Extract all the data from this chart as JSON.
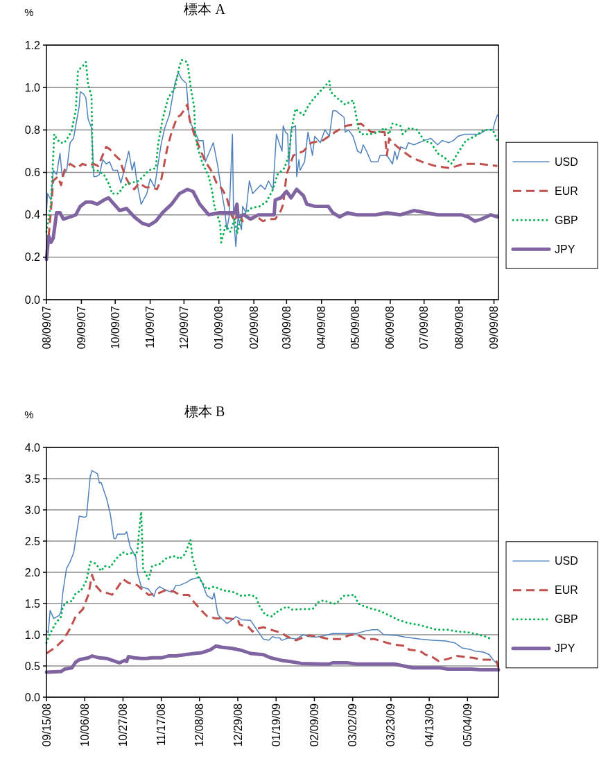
{
  "chart_data": [
    {
      "type": "line",
      "title": "標本 A",
      "ylabel": "%",
      "xlim": [
        "2007-08-09",
        "2008-09-13"
      ],
      "ylim": [
        0,
        1.2
      ],
      "yticks": [
        {
          "value": 0,
          "label": "0.0"
        },
        {
          "value": 0.2,
          "label": "0.2"
        },
        {
          "value": 0.4,
          "label": "0.4"
        },
        {
          "value": 0.6,
          "label": "0.6"
        },
        {
          "value": 0.8,
          "label": "0.8"
        },
        {
          "value": 1.0,
          "label": "1.0"
        },
        {
          "value": 1.2,
          "label": "1.2"
        }
      ],
      "xticks": [
        {
          "value": "2007-08-09",
          "label": "08/09/07"
        },
        {
          "value": "2007-09-09",
          "label": "09/09/07"
        },
        {
          "value": "2007-10-09",
          "label": "10/09/07"
        },
        {
          "value": "2007-11-09",
          "label": "11/09/07"
        },
        {
          "value": "2007-12-09",
          "label": "12/09/07"
        },
        {
          "value": "2008-01-09",
          "label": "01/09/08"
        },
        {
          "value": "2008-02-09",
          "label": "02/09/08"
        },
        {
          "value": "2008-03-09",
          "label": "03/09/08"
        },
        {
          "value": "2008-04-09",
          "label": "04/09/08"
        },
        {
          "value": "2008-05-09",
          "label": "05/09/08"
        },
        {
          "value": "2008-06-09",
          "label": "06/09/08"
        },
        {
          "value": "2008-07-09",
          "label": "07/09/08"
        },
        {
          "value": "2008-08-09",
          "label": "08/09/08"
        },
        {
          "value": "2008-09-09",
          "label": "09/09/08"
        }
      ],
      "grid": "y",
      "legend": "right",
      "series": [
        {
          "name": "USD",
          "color": "#4f81bd",
          "line_style": "solid",
          "x": [
            "2007-08-09",
            "2007-08-10",
            "2007-08-13",
            "2007-08-15",
            "2007-08-18",
            "2007-08-21",
            "2007-08-23",
            "2007-08-27",
            "2007-08-30",
            "2007-09-02",
            "2007-09-04",
            "2007-09-07",
            "2007-09-08",
            "2007-09-11",
            "2007-09-13",
            "2007-09-15",
            "2007-09-18",
            "2007-09-20",
            "2007-09-22",
            "2007-09-25",
            "2007-09-28",
            "2007-10-01",
            "2007-10-04",
            "2007-10-07",
            "2007-10-11",
            "2007-10-14",
            "2007-10-17",
            "2007-10-21",
            "2007-10-24",
            "2007-10-26",
            "2007-10-28",
            "2007-11-01",
            "2007-11-06",
            "2007-11-09",
            "2007-11-13",
            "2007-11-16",
            "2007-11-19",
            "2007-11-22",
            "2007-11-26",
            "2007-12-01",
            "2007-12-04",
            "2007-12-07",
            "2007-12-11",
            "2007-12-14",
            "2007-12-18",
            "2007-12-22",
            "2007-12-26",
            "2007-12-28",
            "2007-12-31",
            "2008-01-04",
            "2008-01-08",
            "2008-01-11",
            "2008-01-14",
            "2008-01-16",
            "2008-01-18",
            "2008-01-21",
            "2008-01-22",
            "2008-01-24",
            "2008-01-26",
            "2008-01-29",
            "2008-01-30",
            "2008-02-02",
            "2008-02-05",
            "2008-02-08",
            "2008-02-15",
            "2008-02-19",
            "2008-02-22",
            "2008-02-26",
            "2008-02-29",
            "2008-03-03",
            "2008-03-05",
            "2008-03-06",
            "2008-03-08",
            "2008-03-10",
            "2008-03-11",
            "2008-03-13",
            "2008-03-14",
            "2008-03-17",
            "2008-03-18",
            "2008-03-20",
            "2008-03-21",
            "2008-03-25",
            "2008-03-28",
            "2008-04-01",
            "2008-04-03",
            "2008-04-08",
            "2008-04-12",
            "2008-04-16",
            "2008-04-19",
            "2008-04-22",
            "2008-04-24",
            "2008-04-29",
            "2008-04-30",
            "2008-05-03",
            "2008-05-07",
            "2008-05-11",
            "2008-05-14",
            "2008-05-16",
            "2008-05-19",
            "2008-05-23",
            "2008-05-29",
            "2008-05-31",
            "2008-06-06",
            "2008-06-11",
            "2008-06-13",
            "2008-06-15",
            "2008-06-18",
            "2008-06-23",
            "2008-06-25",
            "2008-06-30",
            "2008-07-09",
            "2008-07-15",
            "2008-07-21",
            "2008-07-25",
            "2008-07-31",
            "2008-08-04",
            "2008-08-08",
            "2008-08-14",
            "2008-08-20",
            "2008-08-27",
            "2008-09-02",
            "2008-09-08",
            "2008-09-10",
            "2008-09-12"
          ],
          "values": [
            0.41,
            0.5,
            0.47,
            0.61,
            0.59,
            0.69,
            0.58,
            0.61,
            0.74,
            0.76,
            0.82,
            0.91,
            0.98,
            0.97,
            0.95,
            0.85,
            0.81,
            0.58,
            0.58,
            0.59,
            0.66,
            0.64,
            0.65,
            0.61,
            0.61,
            0.55,
            0.61,
            0.7,
            0.61,
            0.65,
            0.56,
            0.45,
            0.5,
            0.57,
            0.53,
            0.64,
            0.74,
            0.81,
            0.87,
            1.02,
            1.07,
            1.04,
            1.02,
            0.84,
            0.8,
            0.75,
            0.75,
            0.65,
            0.69,
            0.74,
            0.63,
            0.52,
            0.43,
            0.33,
            0.39,
            0.78,
            0.39,
            0.25,
            0.39,
            0.33,
            0.44,
            0.41,
            0.56,
            0.5,
            0.54,
            0.52,
            0.56,
            0.52,
            0.78,
            0.73,
            0.7,
            0.82,
            0.79,
            0.78,
            0.63,
            0.8,
            0.81,
            0.82,
            0.58,
            0.66,
            0.61,
            0.65,
            0.79,
            0.68,
            0.77,
            0.74,
            0.8,
            0.77,
            0.89,
            0.89,
            0.88,
            0.86,
            0.79,
            0.8,
            0.77,
            0.7,
            0.69,
            0.73,
            0.7,
            0.65,
            0.65,
            0.68,
            0.68,
            0.64,
            0.7,
            0.66,
            0.72,
            0.71,
            0.74,
            0.73,
            0.75,
            0.76,
            0.73,
            0.75,
            0.74,
            0.75,
            0.77,
            0.78,
            0.78,
            0.78,
            0.8,
            0.8,
            0.84,
            0.87
          ]
        },
        {
          "name": "EUR",
          "color": "#c0504d",
          "line_style": "dashed",
          "x": [
            "2007-08-11",
            "2007-08-13",
            "2007-08-15",
            "2007-08-19",
            "2007-08-22",
            "2007-08-25",
            "2007-08-30",
            "2007-09-05",
            "2007-09-10",
            "2007-09-15",
            "2007-09-20",
            "2007-09-24",
            "2007-09-27",
            "2007-10-01",
            "2007-10-04",
            "2007-10-09",
            "2007-10-13",
            "2007-10-18",
            "2007-10-22",
            "2007-10-26",
            "2007-10-30",
            "2007-11-05",
            "2007-11-10",
            "2007-11-15",
            "2007-11-19",
            "2007-11-24",
            "2007-11-28",
            "2007-12-03",
            "2007-12-06",
            "2007-12-10",
            "2007-12-12",
            "2007-12-14",
            "2007-12-18",
            "2007-12-24",
            "2007-12-28",
            "2008-01-02",
            "2008-01-07",
            "2008-01-12",
            "2008-01-16",
            "2008-01-20",
            "2008-01-23",
            "2008-01-26",
            "2008-01-30",
            "2008-02-03",
            "2008-02-07",
            "2008-02-12",
            "2008-02-17",
            "2008-02-22",
            "2008-02-28",
            "2008-03-04",
            "2008-03-06",
            "2008-03-09",
            "2008-03-15",
            "2008-03-24",
            "2008-03-31",
            "2008-04-10",
            "2008-04-21",
            "2008-05-01",
            "2008-05-14",
            "2008-05-23",
            "2008-05-31",
            "2008-06-04",
            "2008-06-06",
            "2008-06-08",
            "2008-06-11",
            "2008-06-20",
            "2008-06-28",
            "2008-07-07",
            "2008-07-19",
            "2008-08-01",
            "2008-08-13",
            "2008-08-27",
            "2008-09-12"
          ],
          "values": [
            0.3,
            0.42,
            0.56,
            0.58,
            0.54,
            0.61,
            0.64,
            0.62,
            0.64,
            0.63,
            0.64,
            0.63,
            0.67,
            0.72,
            0.71,
            0.68,
            0.66,
            0.58,
            0.54,
            0.52,
            0.55,
            0.53,
            0.53,
            0.52,
            0.57,
            0.71,
            0.79,
            0.86,
            0.87,
            0.9,
            0.92,
            0.85,
            0.78,
            0.7,
            0.65,
            0.61,
            0.55,
            0.52,
            0.48,
            0.4,
            0.37,
            0.42,
            0.37,
            0.39,
            0.38,
            0.39,
            0.37,
            0.38,
            0.38,
            0.42,
            0.45,
            0.59,
            0.68,
            0.7,
            0.74,
            0.75,
            0.79,
            0.82,
            0.83,
            0.79,
            0.79,
            0.79,
            0.68,
            0.76,
            0.74,
            0.7,
            0.67,
            0.65,
            0.63,
            0.62,
            0.64,
            0.64,
            0.63
          ]
        },
        {
          "name": "GBP",
          "color": "#00b050",
          "line_style": "dotted",
          "x": [
            "2007-08-09",
            "2007-08-13",
            "2007-08-16",
            "2007-08-18",
            "2007-08-21",
            "2007-08-25",
            "2007-08-31",
            "2007-09-04",
            "2007-09-06",
            "2007-09-10",
            "2007-09-13",
            "2007-09-15",
            "2007-09-18",
            "2007-09-19",
            "2007-09-23",
            "2007-09-29",
            "2007-10-04",
            "2007-10-06",
            "2007-10-12",
            "2007-10-17",
            "2007-10-23",
            "2007-10-30",
            "2007-11-08",
            "2007-11-14",
            "2007-11-16",
            "2007-11-20",
            "2007-11-25",
            "2007-12-01",
            "2007-12-05",
            "2007-12-07",
            "2007-12-12",
            "2007-12-15",
            "2007-12-18",
            "2007-12-19",
            "2007-12-21",
            "2007-12-25",
            "2007-12-31",
            "2008-01-03",
            "2008-01-05",
            "2008-01-10",
            "2008-01-11",
            "2008-01-15",
            "2008-01-19",
            "2008-01-23",
            "2008-01-25",
            "2008-01-29",
            "2008-02-06",
            "2008-02-14",
            "2008-02-20",
            "2008-02-26",
            "2008-03-01",
            "2008-03-07",
            "2008-03-11",
            "2008-03-14",
            "2008-03-17",
            "2008-03-19",
            "2008-03-24",
            "2008-03-29",
            "2008-04-04",
            "2008-04-11",
            "2008-04-16",
            "2008-04-17",
            "2008-04-23",
            "2008-04-30",
            "2008-05-07",
            "2008-05-09",
            "2008-05-12",
            "2008-05-14",
            "2008-05-22",
            "2008-05-30",
            "2008-06-04",
            "2008-06-08",
            "2008-06-11",
            "2008-06-18",
            "2008-06-20",
            "2008-06-26",
            "2008-07-03",
            "2008-07-09",
            "2008-07-15",
            "2008-07-21",
            "2008-07-27",
            "2008-08-02",
            "2008-08-09",
            "2008-08-15",
            "2008-08-23",
            "2008-08-31",
            "2008-09-08",
            "2008-09-12"
          ],
          "values": [
            0.32,
            0.45,
            0.78,
            0.76,
            0.74,
            0.74,
            0.79,
            0.89,
            1.08,
            1.1,
            1.12,
            1.01,
            0.96,
            0.61,
            0.61,
            0.59,
            0.54,
            0.5,
            0.5,
            0.54,
            0.55,
            0.56,
            0.61,
            0.62,
            0.73,
            0.85,
            0.95,
            1.0,
            1.1,
            1.13,
            1.12,
            1.0,
            0.91,
            0.78,
            0.72,
            0.65,
            0.58,
            0.51,
            0.44,
            0.36,
            0.27,
            0.35,
            0.32,
            0.38,
            0.31,
            0.39,
            0.43,
            0.44,
            0.46,
            0.52,
            0.59,
            0.62,
            0.68,
            0.82,
            0.9,
            0.89,
            0.87,
            0.92,
            0.96,
            1.0,
            1.03,
            0.98,
            0.95,
            0.92,
            0.94,
            0.89,
            0.8,
            0.78,
            0.78,
            0.79,
            0.81,
            0.78,
            0.83,
            0.82,
            0.78,
            0.81,
            0.8,
            0.75,
            0.74,
            0.69,
            0.67,
            0.64,
            0.7,
            0.75,
            0.77,
            0.8,
            0.8,
            0.75
          ]
        },
        {
          "name": "JPY",
          "color": "#8064a2",
          "line_style": "solid",
          "x": [
            "2007-08-09",
            "2007-08-11",
            "2007-08-13",
            "2007-08-15",
            "2007-08-18",
            "2007-08-21",
            "2007-08-24",
            "2007-08-30",
            "2007-09-04",
            "2007-09-08",
            "2007-09-13",
            "2007-09-18",
            "2007-09-23",
            "2007-09-29",
            "2007-10-03",
            "2007-10-08",
            "2007-10-13",
            "2007-10-19",
            "2007-10-26",
            "2007-11-02",
            "2007-11-08",
            "2007-11-14",
            "2007-11-20",
            "2007-11-28",
            "2007-12-05",
            "2007-12-12",
            "2007-12-17",
            "2007-12-23",
            "2007-12-31",
            "2008-01-09",
            "2008-01-17",
            "2008-01-23",
            "2008-01-25",
            "2008-01-26",
            "2008-01-31",
            "2008-02-06",
            "2008-02-13",
            "2008-02-21",
            "2008-02-27",
            "2008-02-28",
            "2008-03-04",
            "2008-03-09",
            "2008-03-13",
            "2008-03-18",
            "2008-03-24",
            "2008-03-27",
            "2008-04-03",
            "2008-04-09",
            "2008-04-15",
            "2008-04-19",
            "2008-04-25",
            "2008-05-02",
            "2008-05-10",
            "2008-05-16",
            "2008-05-27",
            "2008-06-06",
            "2008-06-18",
            "2008-06-30",
            "2008-07-11",
            "2008-07-21",
            "2008-08-01",
            "2008-08-11",
            "2008-08-17",
            "2008-08-23",
            "2008-08-29",
            "2008-09-06",
            "2008-09-12"
          ],
          "values": [
            0.19,
            0.3,
            0.27,
            0.29,
            0.41,
            0.41,
            0.38,
            0.39,
            0.4,
            0.44,
            0.46,
            0.46,
            0.45,
            0.47,
            0.48,
            0.45,
            0.42,
            0.43,
            0.39,
            0.36,
            0.35,
            0.37,
            0.41,
            0.45,
            0.5,
            0.52,
            0.51,
            0.45,
            0.4,
            0.41,
            0.41,
            0.41,
            0.45,
            0.39,
            0.4,
            0.38,
            0.4,
            0.4,
            0.4,
            0.47,
            0.48,
            0.51,
            0.48,
            0.52,
            0.49,
            0.45,
            0.44,
            0.44,
            0.44,
            0.41,
            0.39,
            0.41,
            0.4,
            0.4,
            0.4,
            0.41,
            0.4,
            0.42,
            0.41,
            0.4,
            0.4,
            0.4,
            0.39,
            0.37,
            0.38,
            0.4,
            0.39
          ]
        }
      ]
    },
    {
      "type": "line",
      "title": "標本 B",
      "ylabel": "%",
      "xlim": [
        "2008-09-15",
        "2009-05-21"
      ],
      "ylim": [
        0,
        4
      ],
      "yticks": [
        {
          "value": 0,
          "label": "0.0"
        },
        {
          "value": 0.5,
          "label": "0.5"
        },
        {
          "value": 1.0,
          "label": "1.0"
        },
        {
          "value": 1.5,
          "label": "1.5"
        },
        {
          "value": 2.0,
          "label": "2.0"
        },
        {
          "value": 2.5,
          "label": "2.5"
        },
        {
          "value": 3.0,
          "label": "3.0"
        },
        {
          "value": 3.5,
          "label": "3.5"
        },
        {
          "value": 4.0,
          "label": "4.0"
        }
      ],
      "xticks": [
        {
          "value": "2008-09-15",
          "label": "09/15/08"
        },
        {
          "value": "2008-10-06",
          "label": "10/06/08"
        },
        {
          "value": "2008-10-27",
          "label": "10/27/08"
        },
        {
          "value": "2008-11-17",
          "label": "11/17/08"
        },
        {
          "value": "2008-12-08",
          "label": "12/08/08"
        },
        {
          "value": "2008-12-29",
          "label": "12/29/08"
        },
        {
          "value": "2009-01-19",
          "label": "01/19/09"
        },
        {
          "value": "2009-02-09",
          "label": "02/09/09"
        },
        {
          "value": "2009-03-02",
          "label": "03/02/09"
        },
        {
          "value": "2009-03-23",
          "label": "03/23/09"
        },
        {
          "value": "2009-04-13",
          "label": "04/13/09"
        },
        {
          "value": "2009-05-04",
          "label": "05/04/09"
        }
      ],
      "grid": "y",
      "legend": "right",
      "series": [
        {
          "name": "USD",
          "color": "#4f81bd",
          "line_style": "solid",
          "x": [
            "2008-09-15",
            "2008-09-16",
            "2008-09-17",
            "2008-09-19",
            "2008-09-22",
            "2008-09-23",
            "2008-09-24",
            "2008-09-26",
            "2008-09-28",
            "2008-09-30",
            "2008-10-01",
            "2008-10-02",
            "2008-10-03",
            "2008-10-06",
            "2008-10-07",
            "2008-10-09",
            "2008-10-10",
            "2008-10-13",
            "2008-10-14",
            "2008-10-15",
            "2008-10-18",
            "2008-10-20",
            "2008-10-22",
            "2008-10-23",
            "2008-10-24",
            "2008-10-28",
            "2008-10-29",
            "2008-10-31",
            "2008-11-03",
            "2008-11-04",
            "2008-11-06",
            "2008-11-10",
            "2008-11-13",
            "2008-11-14",
            "2008-11-16",
            "2008-11-19",
            "2008-11-23",
            "2008-11-25",
            "2008-11-27",
            "2008-12-01",
            "2008-12-03",
            "2008-12-05",
            "2008-12-08",
            "2008-12-09",
            "2008-12-12",
            "2008-12-15",
            "2008-12-16",
            "2008-12-18",
            "2008-12-19",
            "2008-12-23",
            "2008-12-26",
            "2008-12-28",
            "2008-12-31",
            "2009-01-05",
            "2009-01-08",
            "2009-01-12",
            "2009-01-15",
            "2009-01-17",
            "2009-01-19",
            "2009-01-21",
            "2009-01-22",
            "2009-01-26",
            "2009-01-30",
            "2009-02-03",
            "2009-02-06",
            "2009-02-10",
            "2009-02-14",
            "2009-02-19",
            "2009-03-04",
            "2009-03-09",
            "2009-03-13",
            "2009-03-16",
            "2009-03-19",
            "2009-03-26",
            "2009-03-31",
            "2009-04-08",
            "2009-04-15",
            "2009-04-22",
            "2009-04-27",
            "2009-05-01",
            "2009-05-06",
            "2009-05-08",
            "2009-05-13",
            "2009-05-16",
            "2009-05-18",
            "2009-05-21"
          ],
          "values": [
            1.07,
            1.03,
            1.39,
            1.26,
            1.31,
            1.37,
            1.68,
            2.06,
            2.17,
            2.32,
            2.52,
            2.71,
            2.9,
            2.88,
            2.9,
            3.53,
            3.63,
            3.58,
            3.43,
            3.44,
            3.18,
            2.94,
            2.54,
            2.54,
            2.61,
            2.61,
            2.65,
            2.4,
            2.25,
            1.98,
            1.77,
            1.73,
            1.61,
            1.71,
            1.77,
            1.72,
            1.68,
            1.79,
            1.79,
            1.84,
            1.88,
            1.9,
            1.92,
            1.86,
            1.63,
            1.57,
            1.67,
            1.33,
            1.29,
            1.18,
            1.24,
            1.29,
            1.24,
            1.23,
            1.1,
            0.93,
            0.91,
            0.97,
            0.95,
            0.95,
            0.91,
            0.95,
            0.93,
            1.0,
            0.97,
            0.96,
            0.98,
            1.02,
            1.02,
            1.06,
            1.08,
            1.08,
            1.0,
            0.99,
            0.96,
            0.93,
            0.91,
            0.9,
            0.87,
            0.79,
            0.76,
            0.74,
            0.72,
            0.68,
            0.6,
            0.51
          ]
        },
        {
          "name": "EUR",
          "color": "#c0504d",
          "line_style": "dashed",
          "x": [
            "2008-09-15",
            "2008-09-20",
            "2008-09-24",
            "2008-09-28",
            "2008-10-01",
            "2008-10-05",
            "2008-10-08",
            "2008-10-10",
            "2008-10-12",
            "2008-10-15",
            "2008-10-18",
            "2008-10-21",
            "2008-10-23",
            "2008-10-27",
            "2008-10-30",
            "2008-11-02",
            "2008-11-04",
            "2008-11-07",
            "2008-11-10",
            "2008-11-15",
            "2008-11-20",
            "2008-11-24",
            "2008-11-27",
            "2008-12-02",
            "2008-12-05",
            "2008-12-09",
            "2008-12-12",
            "2008-12-17",
            "2008-12-22",
            "2008-12-29",
            "2008-12-30",
            "2009-01-04",
            "2009-01-06",
            "2009-01-09",
            "2009-01-12",
            "2009-01-16",
            "2009-01-22",
            "2009-01-25",
            "2009-01-30",
            "2009-02-04",
            "2009-02-06",
            "2009-02-11",
            "2009-02-17",
            "2009-02-23",
            "2009-02-28",
            "2009-03-04",
            "2009-03-09",
            "2009-03-14",
            "2009-03-21",
            "2009-03-25",
            "2009-03-31",
            "2009-04-02",
            "2009-04-08",
            "2009-04-11",
            "2009-04-15",
            "2009-04-18",
            "2009-04-23",
            "2009-04-28",
            "2009-05-04",
            "2009-05-07",
            "2009-05-12",
            "2009-05-16",
            "2009-05-20",
            "2009-05-21"
          ],
          "values": [
            0.7,
            0.8,
            0.91,
            1.1,
            1.29,
            1.41,
            1.64,
            1.96,
            1.79,
            1.69,
            1.67,
            1.64,
            1.71,
            1.89,
            1.83,
            1.81,
            1.79,
            1.71,
            1.64,
            1.66,
            1.72,
            1.69,
            1.64,
            1.64,
            1.52,
            1.39,
            1.3,
            1.26,
            1.27,
            1.24,
            1.16,
            1.12,
            1.05,
            1.1,
            1.12,
            1.08,
            1.03,
            0.97,
            0.91,
            0.97,
            0.99,
            0.97,
            0.93,
            0.93,
            0.99,
            1.01,
            0.93,
            0.93,
            0.87,
            0.84,
            0.82,
            0.76,
            0.74,
            0.68,
            0.64,
            0.58,
            0.61,
            0.66,
            0.64,
            0.63,
            0.6,
            0.6,
            0.57,
            0.47
          ]
        },
        {
          "name": "GBP",
          "color": "#00b050",
          "line_style": "dotted",
          "x": [
            "2008-09-15",
            "2008-09-17",
            "2008-09-20",
            "2008-09-23",
            "2008-09-24",
            "2008-09-26",
            "2008-09-29",
            "2008-10-01",
            "2008-10-04",
            "2008-10-07",
            "2008-10-09",
            "2008-10-12",
            "2008-10-15",
            "2008-10-17",
            "2008-10-20",
            "2008-10-23",
            "2008-10-27",
            "2008-10-29",
            "2008-11-01",
            "2008-11-03",
            "2008-11-04",
            "2008-11-05",
            "2008-11-06",
            "2008-11-07",
            "2008-11-10",
            "2008-11-12",
            "2008-11-16",
            "2008-11-20",
            "2008-11-25",
            "2008-11-27",
            "2008-11-30",
            "2008-12-03",
            "2008-12-04",
            "2008-12-07",
            "2008-12-09",
            "2008-12-12",
            "2008-12-16",
            "2008-12-21",
            "2008-12-26",
            "2008-12-31",
            "2009-01-05",
            "2009-01-08",
            "2009-01-10",
            "2009-01-13",
            "2009-01-17",
            "2009-01-19",
            "2009-01-20",
            "2009-01-22",
            "2009-01-25",
            "2009-01-28",
            "2009-02-02",
            "2009-02-08",
            "2009-02-11",
            "2009-02-14",
            "2009-02-19",
            "2009-02-21",
            "2009-02-25",
            "2009-03-03",
            "2009-03-05",
            "2009-03-08",
            "2009-03-12",
            "2009-03-17",
            "2009-03-22",
            "2009-03-27",
            "2009-04-01",
            "2009-04-07",
            "2009-04-12",
            "2009-04-17",
            "2009-04-23",
            "2009-04-29",
            "2009-05-04",
            "2009-05-09",
            "2009-05-14",
            "2009-05-17"
          ],
          "values": [
            0.87,
            1.02,
            1.18,
            1.29,
            1.45,
            1.52,
            1.54,
            1.66,
            1.71,
            1.87,
            2.17,
            2.14,
            2.02,
            2.1,
            2.08,
            2.21,
            2.32,
            2.29,
            2.31,
            2.27,
            2.36,
            2.71,
            2.97,
            2.06,
            1.89,
            2.1,
            2.13,
            2.23,
            2.26,
            2.21,
            2.29,
            2.52,
            2.25,
            1.94,
            1.85,
            1.73,
            1.77,
            1.71,
            1.69,
            1.62,
            1.64,
            1.6,
            1.45,
            1.32,
            1.29,
            1.37,
            1.37,
            1.41,
            1.45,
            1.4,
            1.41,
            1.41,
            1.52,
            1.55,
            1.5,
            1.5,
            1.62,
            1.64,
            1.5,
            1.46,
            1.42,
            1.38,
            1.31,
            1.24,
            1.19,
            1.16,
            1.12,
            1.08,
            1.08,
            1.05,
            1.04,
            1.01,
            0.97,
            0.93
          ]
        },
        {
          "name": "JPY",
          "color": "#8064a2",
          "line_style": "solid",
          "x": [
            "2008-09-15",
            "2008-09-23",
            "2008-09-25",
            "2008-09-29",
            "2008-10-01",
            "2008-10-03",
            "2008-10-08",
            "2008-10-10",
            "2008-10-14",
            "2008-10-18",
            "2008-10-23",
            "2008-10-25",
            "2008-10-28",
            "2008-10-29",
            "2008-10-30",
            "2008-11-02",
            "2008-11-06",
            "2008-11-09",
            "2008-11-12",
            "2008-11-17",
            "2008-11-21",
            "2008-11-25",
            "2008-11-30",
            "2008-12-05",
            "2008-12-09",
            "2008-12-14",
            "2008-12-17",
            "2008-12-20",
            "2008-12-26",
            "2008-12-31",
            "2009-01-05",
            "2009-01-12",
            "2009-01-16",
            "2009-01-19",
            "2009-01-22",
            "2009-01-27",
            "2009-02-02",
            "2009-02-13",
            "2009-02-17",
            "2009-02-19",
            "2009-02-27",
            "2009-03-04",
            "2009-03-17",
            "2009-03-25",
            "2009-04-04",
            "2009-04-11",
            "2009-04-19",
            "2009-04-23",
            "2009-05-06",
            "2009-05-11",
            "2009-05-21"
          ],
          "values": [
            0.4,
            0.41,
            0.45,
            0.47,
            0.56,
            0.6,
            0.63,
            0.66,
            0.63,
            0.62,
            0.57,
            0.55,
            0.59,
            0.57,
            0.65,
            0.63,
            0.62,
            0.62,
            0.63,
            0.63,
            0.66,
            0.66,
            0.68,
            0.7,
            0.71,
            0.76,
            0.82,
            0.8,
            0.78,
            0.75,
            0.7,
            0.68,
            0.63,
            0.61,
            0.59,
            0.57,
            0.54,
            0.53,
            0.53,
            0.55,
            0.55,
            0.53,
            0.53,
            0.53,
            0.47,
            0.47,
            0.47,
            0.45,
            0.45,
            0.44,
            0.44
          ]
        }
      ]
    }
  ]
}
